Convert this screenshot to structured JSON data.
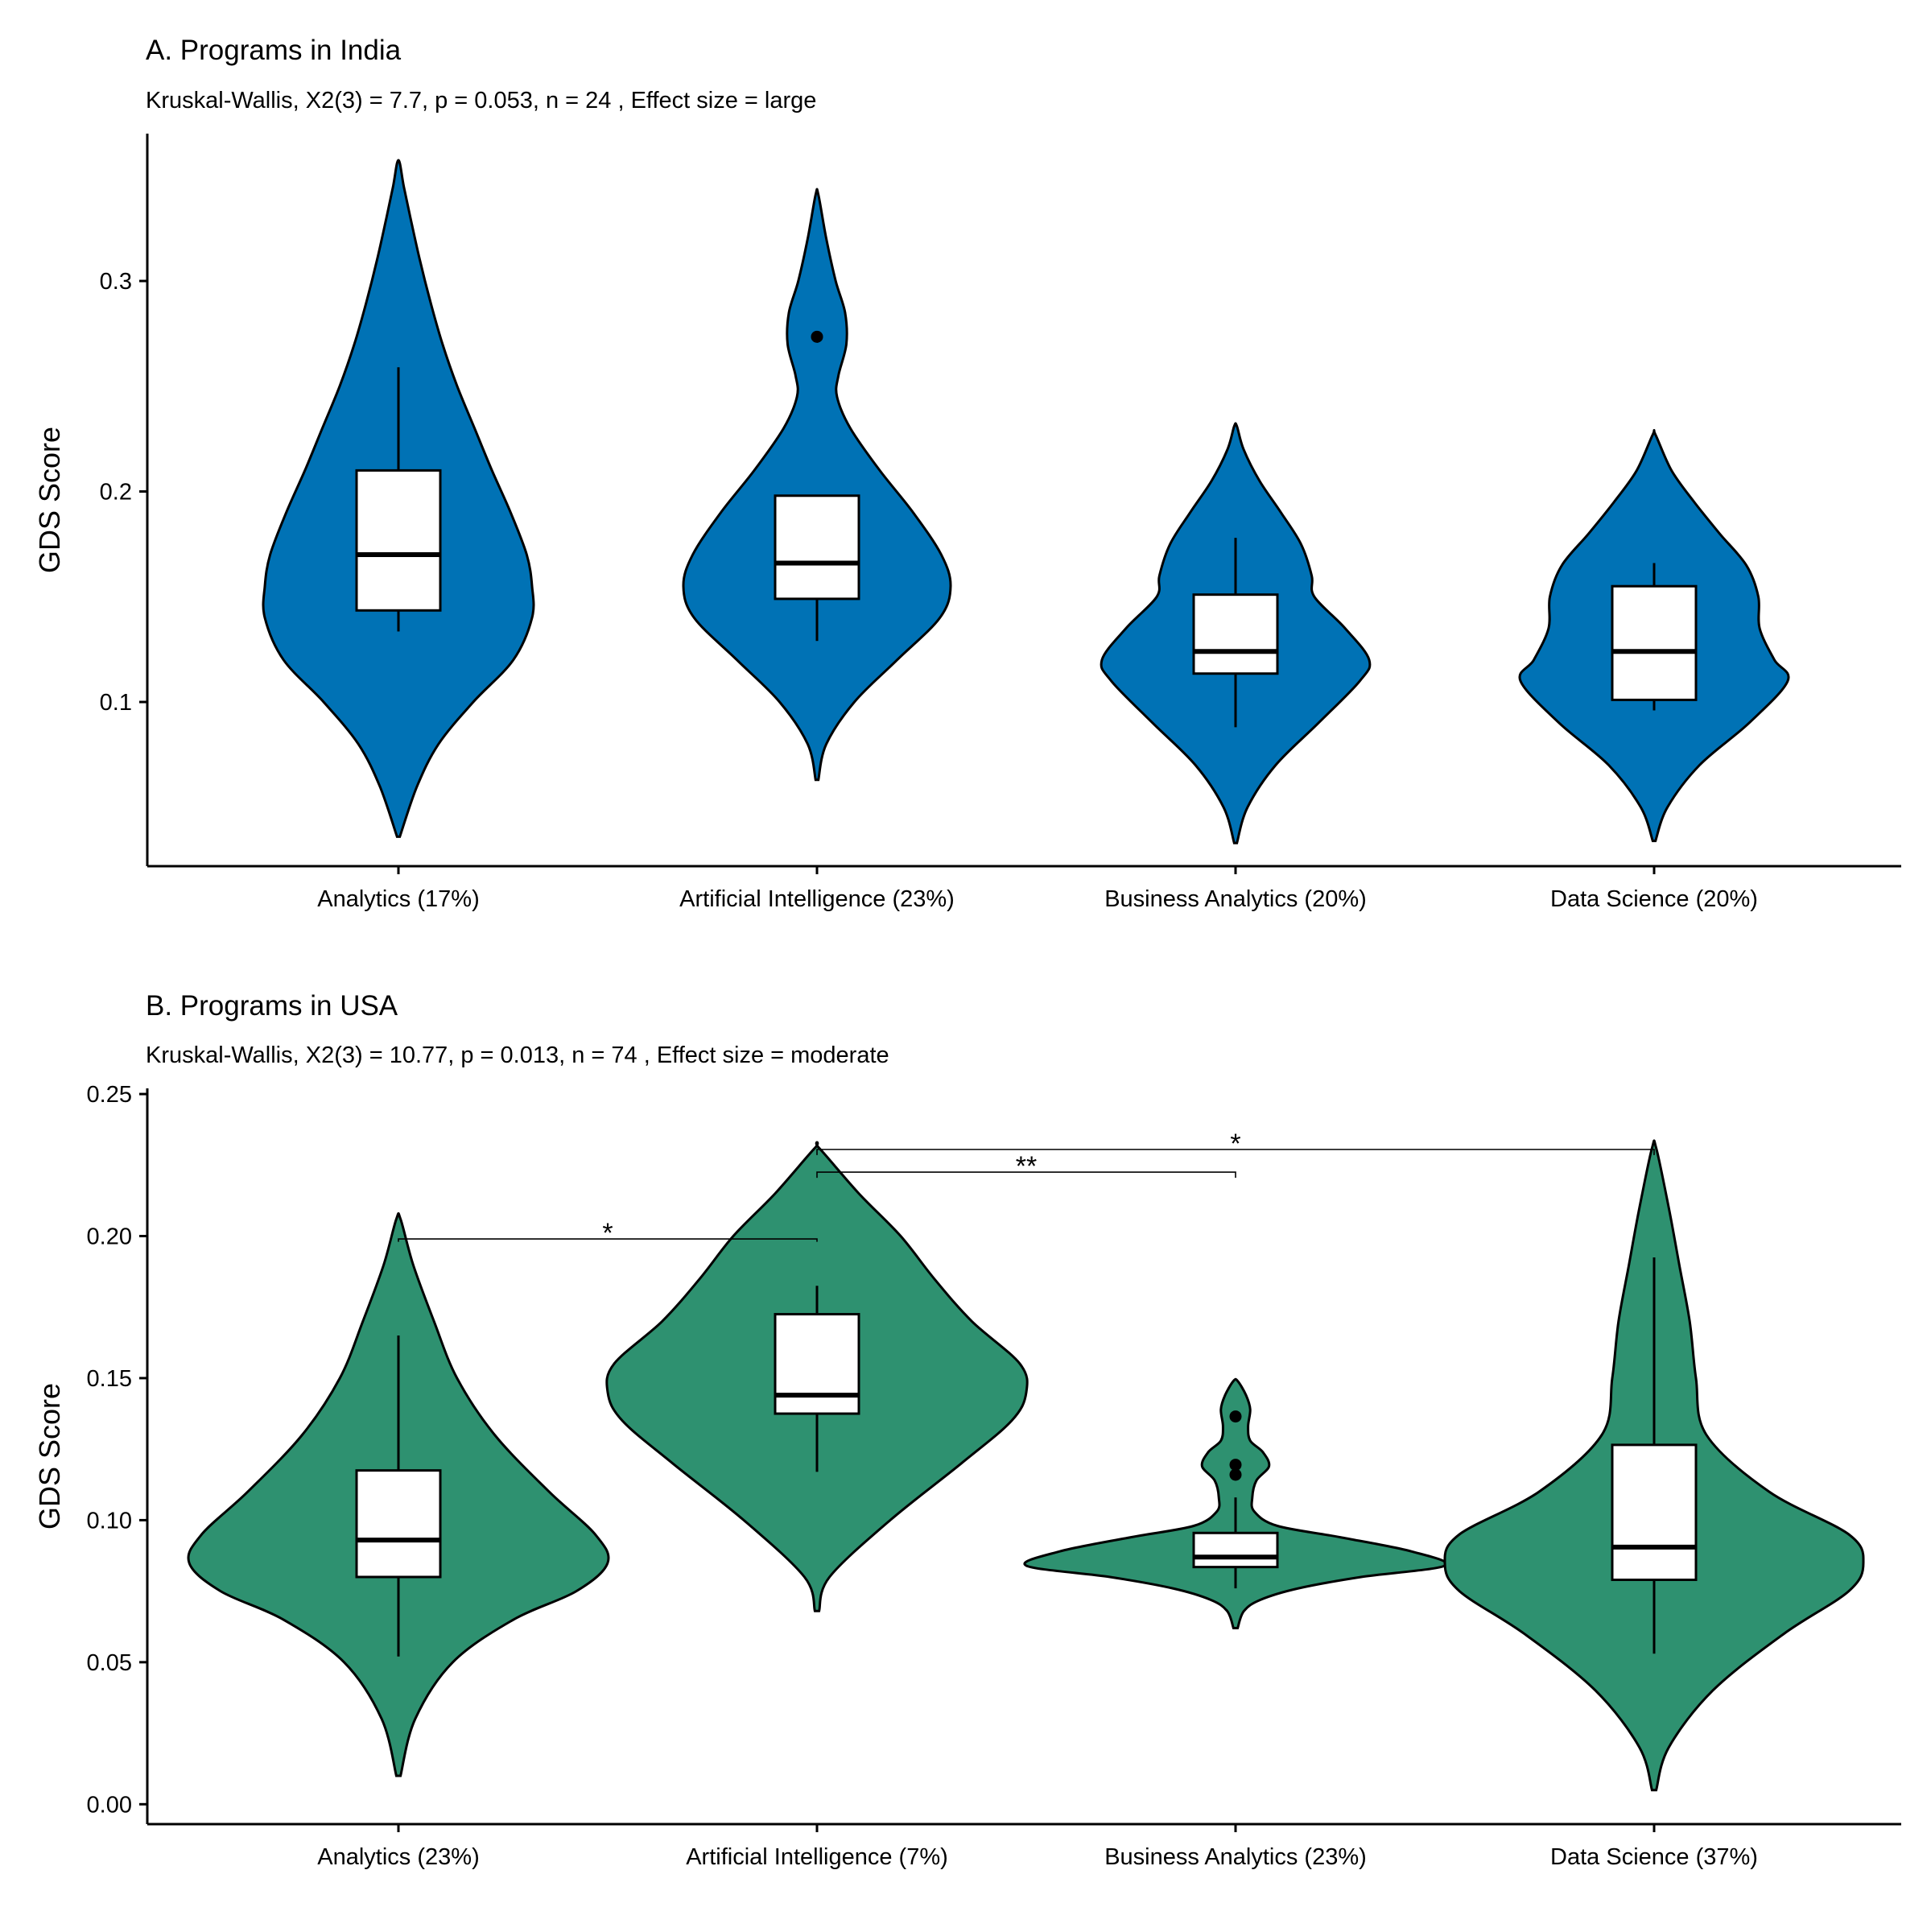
{
  "chart_data": [
    {
      "type": "violin",
      "title": "A. Programs in India",
      "subtitle": "Kruskal-Wallis, X2(3) = 7.7, p = 0.053, n = 24 , Effect size = large",
      "xlabel": "",
      "ylabel": "GDS Score",
      "ylim": [
        0.022,
        0.37
      ],
      "yticks": [
        "0.1",
        "0.2",
        "0.3"
      ],
      "fill_color": "#0072B5",
      "categories": [
        "Analytics (17%)",
        "Artificial Intelligence (23%)",
        "Business Analytics (20%)",
        "Data Science (20%)"
      ],
      "groups": [
        {
          "name": "Analytics (17%)",
          "violin_range": [
            0.036,
            0.356
          ],
          "density": [
            [
              0.036,
              0.01
            ],
            [
              0.06,
              0.14
            ],
            [
              0.08,
              0.3
            ],
            [
              0.1,
              0.56
            ],
            [
              0.12,
              0.86
            ],
            [
              0.14,
              1.0
            ],
            [
              0.155,
              1.0
            ],
            [
              0.17,
              0.96
            ],
            [
              0.19,
              0.84
            ],
            [
              0.21,
              0.7
            ],
            [
              0.23,
              0.57
            ],
            [
              0.25,
              0.44
            ],
            [
              0.27,
              0.33
            ],
            [
              0.29,
              0.24
            ],
            [
              0.31,
              0.16
            ],
            [
              0.33,
              0.09
            ],
            [
              0.345,
              0.04
            ],
            [
              0.356,
              0.01
            ]
          ],
          "box": {
            "q1": 0.1435,
            "median": 0.17,
            "q3": 0.21,
            "whisker_low": 0.1335,
            "whisker_high": 0.259
          },
          "outliers": []
        },
        {
          "name": "Artificial Intelligence (23%)",
          "violin_range": [
            0.063,
            0.341
          ],
          "density": [
            [
              0.063,
              0.01
            ],
            [
              0.08,
              0.07
            ],
            [
              0.1,
              0.28
            ],
            [
              0.12,
              0.6
            ],
            [
              0.14,
              0.92
            ],
            [
              0.155,
              1.0
            ],
            [
              0.17,
              0.93
            ],
            [
              0.19,
              0.72
            ],
            [
              0.21,
              0.47
            ],
            [
              0.23,
              0.25
            ],
            [
              0.245,
              0.15
            ],
            [
              0.255,
              0.16
            ],
            [
              0.27,
              0.22
            ],
            [
              0.285,
              0.21
            ],
            [
              0.3,
              0.14
            ],
            [
              0.32,
              0.07
            ],
            [
              0.341,
              0.01
            ]
          ],
          "box": {
            "q1": 0.149,
            "median": 0.166,
            "q3": 0.198,
            "whisker_low": 0.129,
            "whisker_high": 0.198
          },
          "outliers": [
            0.2735
          ]
        },
        {
          "name": "Business Analytics (20%)",
          "violin_range": [
            0.033,
            0.231
          ],
          "density": [
            [
              0.033,
              0.01
            ],
            [
              0.05,
              0.09
            ],
            [
              0.07,
              0.3
            ],
            [
              0.09,
              0.62
            ],
            [
              0.11,
              0.93
            ],
            [
              0.12,
              1.0
            ],
            [
              0.135,
              0.82
            ],
            [
              0.15,
              0.59
            ],
            [
              0.16,
              0.57
            ],
            [
              0.175,
              0.49
            ],
            [
              0.19,
              0.34
            ],
            [
              0.205,
              0.18
            ],
            [
              0.22,
              0.06
            ],
            [
              0.231,
              0.01
            ]
          ],
          "box": {
            "q1": 0.1135,
            "median": 0.124,
            "q3": 0.151,
            "whisker_low": 0.088,
            "whisker_high": 0.178
          },
          "outliers": []
        },
        {
          "name": "Data Science (20%)",
          "violin_range": [
            0.034,
            0.227
          ],
          "density": [
            [
              0.034,
              0.01
            ],
            [
              0.05,
              0.1
            ],
            [
              0.07,
              0.34
            ],
            [
              0.09,
              0.71
            ],
            [
              0.11,
              1.0
            ],
            [
              0.12,
              0.9
            ],
            [
              0.135,
              0.79
            ],
            [
              0.15,
              0.78
            ],
            [
              0.165,
              0.69
            ],
            [
              0.18,
              0.49
            ],
            [
              0.195,
              0.3
            ],
            [
              0.21,
              0.13
            ],
            [
              0.227,
              0.01
            ]
          ],
          "box": {
            "q1": 0.101,
            "median": 0.124,
            "q3": 0.155,
            "whisker_low": 0.096,
            "whisker_high": 0.166
          },
          "outliers": []
        }
      ],
      "comparisons": []
    },
    {
      "type": "violin",
      "title": "B. Programs in USA",
      "subtitle": "Kruskal-Wallis, X2(3) = 10.77, p = 0.013, n = 74 , Effect size = moderate",
      "xlabel": "",
      "ylabel": "GDS Score",
      "ylim": [
        -0.007,
        0.252
      ],
      "yticks": [
        "0.00",
        "0.05",
        "0.10",
        "0.15",
        "0.20",
        "0.25"
      ],
      "fill_color": "#2E9170",
      "categories": [
        "Analytics (23%)",
        "Artificial Intelligence (7%)",
        "Business Analytics (23%)",
        "Data Science (37%)"
      ],
      "groups": [
        {
          "name": "Analytics (23%)",
          "violin_range": [
            0.01,
            0.206
          ],
          "density": [
            [
              0.01,
              0.01
            ],
            [
              0.03,
              0.08
            ],
            [
              0.05,
              0.26
            ],
            [
              0.065,
              0.55
            ],
            [
              0.075,
              0.85
            ],
            [
              0.085,
              1.0
            ],
            [
              0.095,
              0.94
            ],
            [
              0.11,
              0.72
            ],
            [
              0.13,
              0.46
            ],
            [
              0.15,
              0.28
            ],
            [
              0.17,
              0.17
            ],
            [
              0.19,
              0.07
            ],
            [
              0.206,
              0.01
            ]
          ],
          "box": {
            "q1": 0.08,
            "median": 0.093,
            "q3": 0.1175,
            "whisker_low": 0.052,
            "whisker_high": 0.165
          },
          "outliers": []
        },
        {
          "name": "Artificial Intelligence (7%)",
          "violin_range": [
            0.068,
            0.231
          ],
          "density": [
            [
              0.068,
              0.01
            ],
            [
              0.08,
              0.06
            ],
            [
              0.1,
              0.35
            ],
            [
              0.12,
              0.69
            ],
            [
              0.135,
              0.93
            ],
            [
              0.145,
              1.0
            ],
            [
              0.155,
              0.97
            ],
            [
              0.17,
              0.74
            ],
            [
              0.185,
              0.56
            ],
            [
              0.2,
              0.4
            ],
            [
              0.215,
              0.2
            ],
            [
              0.231,
              0.01
            ]
          ],
          "box": {
            "q1": 0.1375,
            "median": 0.144,
            "q3": 0.1725,
            "whisker_low": 0.117,
            "whisker_high": 0.1825
          },
          "outliers": []
        },
        {
          "name": "Business Analytics (23%)",
          "violin_range": [
            0.062,
            0.149
          ],
          "density": [
            [
              0.062,
              0.01
            ],
            [
              0.068,
              0.04
            ],
            [
              0.072,
              0.12
            ],
            [
              0.076,
              0.3
            ],
            [
              0.08,
              0.6
            ],
            [
              0.084,
              1.0
            ],
            [
              0.089,
              0.84
            ],
            [
              0.094,
              0.5
            ],
            [
              0.098,
              0.2
            ],
            [
              0.103,
              0.09
            ],
            [
              0.108,
              0.08
            ],
            [
              0.114,
              0.1
            ],
            [
              0.119,
              0.16
            ],
            [
              0.124,
              0.13
            ],
            [
              0.128,
              0.07
            ],
            [
              0.133,
              0.06
            ],
            [
              0.139,
              0.07
            ],
            [
              0.144,
              0.05
            ],
            [
              0.149,
              0.01
            ]
          ],
          "box": {
            "q1": 0.0835,
            "median": 0.087,
            "q3": 0.0955,
            "whisker_low": 0.076,
            "whisker_high": 0.108
          },
          "outliers": [
            0.1365,
            0.1195,
            0.116
          ]
        },
        {
          "name": "Data Science (37%)",
          "violin_range": [
            0.005,
            0.231
          ],
          "density": [
            [
              0.005,
              0.01
            ],
            [
              0.02,
              0.07
            ],
            [
              0.04,
              0.28
            ],
            [
              0.06,
              0.62
            ],
            [
              0.075,
              0.93
            ],
            [
              0.085,
              1.0
            ],
            [
              0.095,
              0.93
            ],
            [
              0.11,
              0.55
            ],
            [
              0.13,
              0.25
            ],
            [
              0.15,
              0.2
            ],
            [
              0.17,
              0.17
            ],
            [
              0.19,
              0.12
            ],
            [
              0.21,
              0.07
            ],
            [
              0.231,
              0.01
            ]
          ],
          "box": {
            "q1": 0.079,
            "median": 0.0905,
            "q3": 0.1265,
            "whisker_low": 0.053,
            "whisker_high": 0.1925
          },
          "outliers": []
        }
      ],
      "comparisons": [
        {
          "from": "Analytics (23%)",
          "to": "Artificial Intelligence (7%)",
          "label": "*",
          "y": 0.199,
          "tip_low": 0.198
        },
        {
          "from": "Artificial Intelligence (7%)",
          "to": "Business Analytics (23%)",
          "label": "**",
          "y": 0.2225,
          "tip_low": 0.2205
        },
        {
          "from": "Artificial Intelligence (7%)",
          "to": "Data Science (37%)",
          "label": "*",
          "y": 0.2305,
          "tip_low": 0.2285
        }
      ]
    }
  ]
}
